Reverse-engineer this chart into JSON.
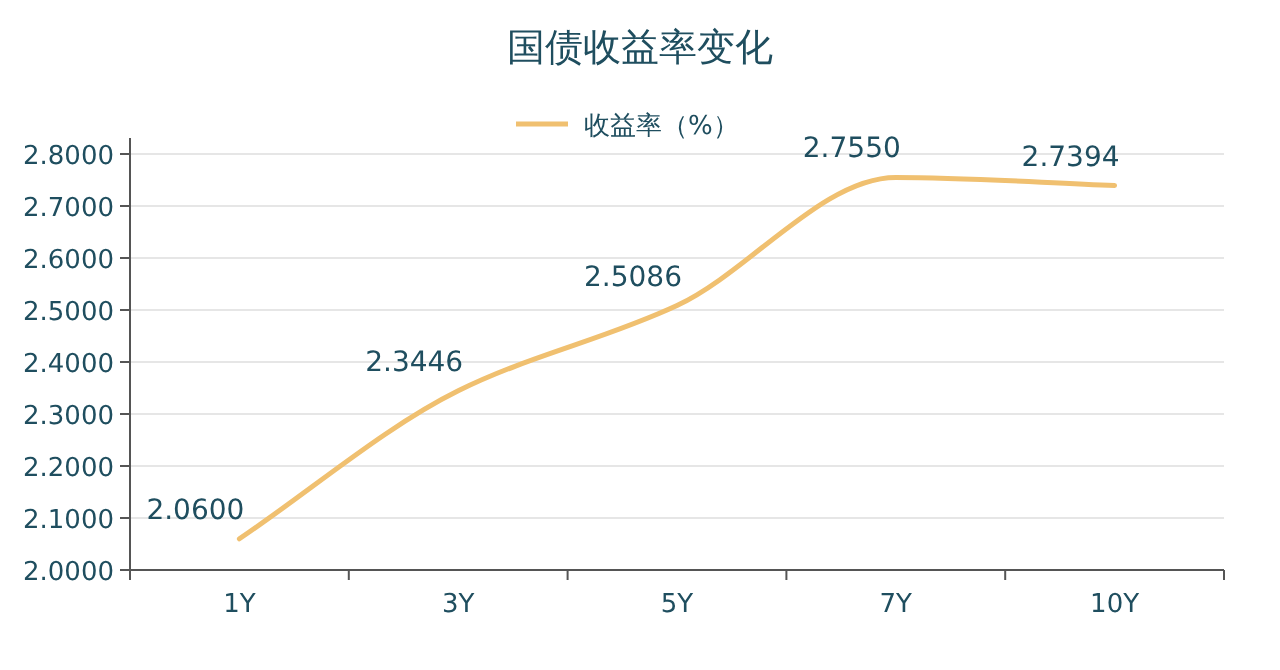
{
  "chart_data": {
    "type": "line",
    "title": "国债收益率变化",
    "categories": [
      "1Y",
      "3Y",
      "5Y",
      "7Y",
      "10Y"
    ],
    "series": [
      {
        "name": "收益率（%）",
        "color": "#f0c070",
        "values": [
          2.06,
          2.3446,
          2.5086,
          2.755,
          2.7394
        ],
        "value_labels": [
          "2.0600",
          "2.3446",
          "2.5086",
          "2.7550",
          "2.7394"
        ]
      }
    ],
    "ylim": [
      2.0,
      2.8
    ],
    "yticks": [
      {
        "value": 2.0,
        "label": "2.0000"
      },
      {
        "value": 2.1,
        "label": "2.1000"
      },
      {
        "value": 2.2,
        "label": "2.2000"
      },
      {
        "value": 2.3,
        "label": "2.3000"
      },
      {
        "value": 2.4,
        "label": "2.4000"
      },
      {
        "value": 2.5,
        "label": "2.5000"
      },
      {
        "value": 2.6,
        "label": "2.6000"
      },
      {
        "value": 2.7,
        "label": "2.7000"
      },
      {
        "value": 2.8,
        "label": "2.8000"
      }
    ],
    "grid": "y",
    "legend": "top"
  }
}
